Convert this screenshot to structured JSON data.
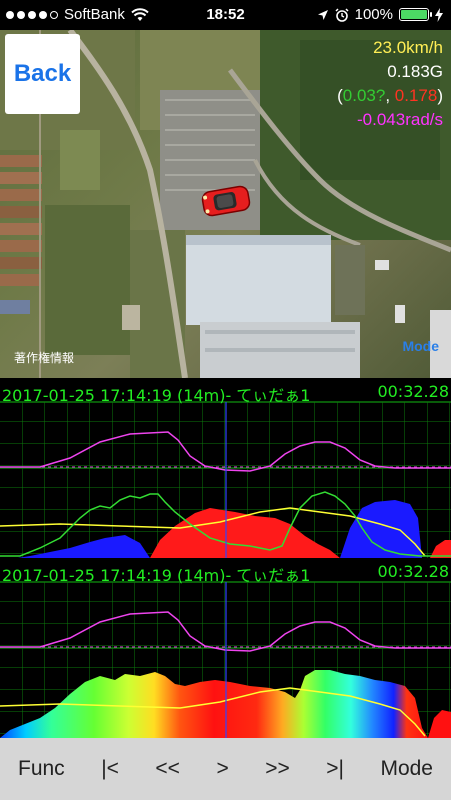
{
  "status_bar": {
    "carrier": "SoftBank",
    "time": "18:52",
    "battery": "100%",
    "icons": [
      "wifi-icon",
      "location-arrow-icon",
      "alarm-icon",
      "battery-icon",
      "charging-icon"
    ]
  },
  "map": {
    "back_label": "Back",
    "speed": "23.0km/h",
    "g_total": "0.183G",
    "g_open": "(",
    "g_x": "0.03?",
    "g_sep": ", ",
    "g_y": "0.178",
    "g_close": ")",
    "yaw_rate": "-0.043rad/s",
    "copyright": "著作権情報",
    "mode_label": "Mode",
    "car_icon": "car-icon"
  },
  "panels": [
    {
      "title": "2017-01-25 17:14:19 (14m)- てぃだぁ1",
      "elapsed": "00:32.28"
    },
    {
      "title": "2017-01-25 17:14:19 (14m)- てぃだぁ1",
      "elapsed": "00:32.28"
    }
  ],
  "toolbar": {
    "func": "Func",
    "first": "|<",
    "rewind": "<<",
    "play": ">",
    "forward": ">>",
    "last": ">|",
    "mode": "Mode"
  },
  "colors": {
    "grid": "#0c7a0c",
    "header_text": "#22ee22",
    "yaw_line": "#ee44ee",
    "speed_line": "#ffff33",
    "g_line": "#33dd33",
    "accel": "#ff1a1a",
    "brake": "#1a1aff",
    "cursor": "#3344ff"
  }
}
